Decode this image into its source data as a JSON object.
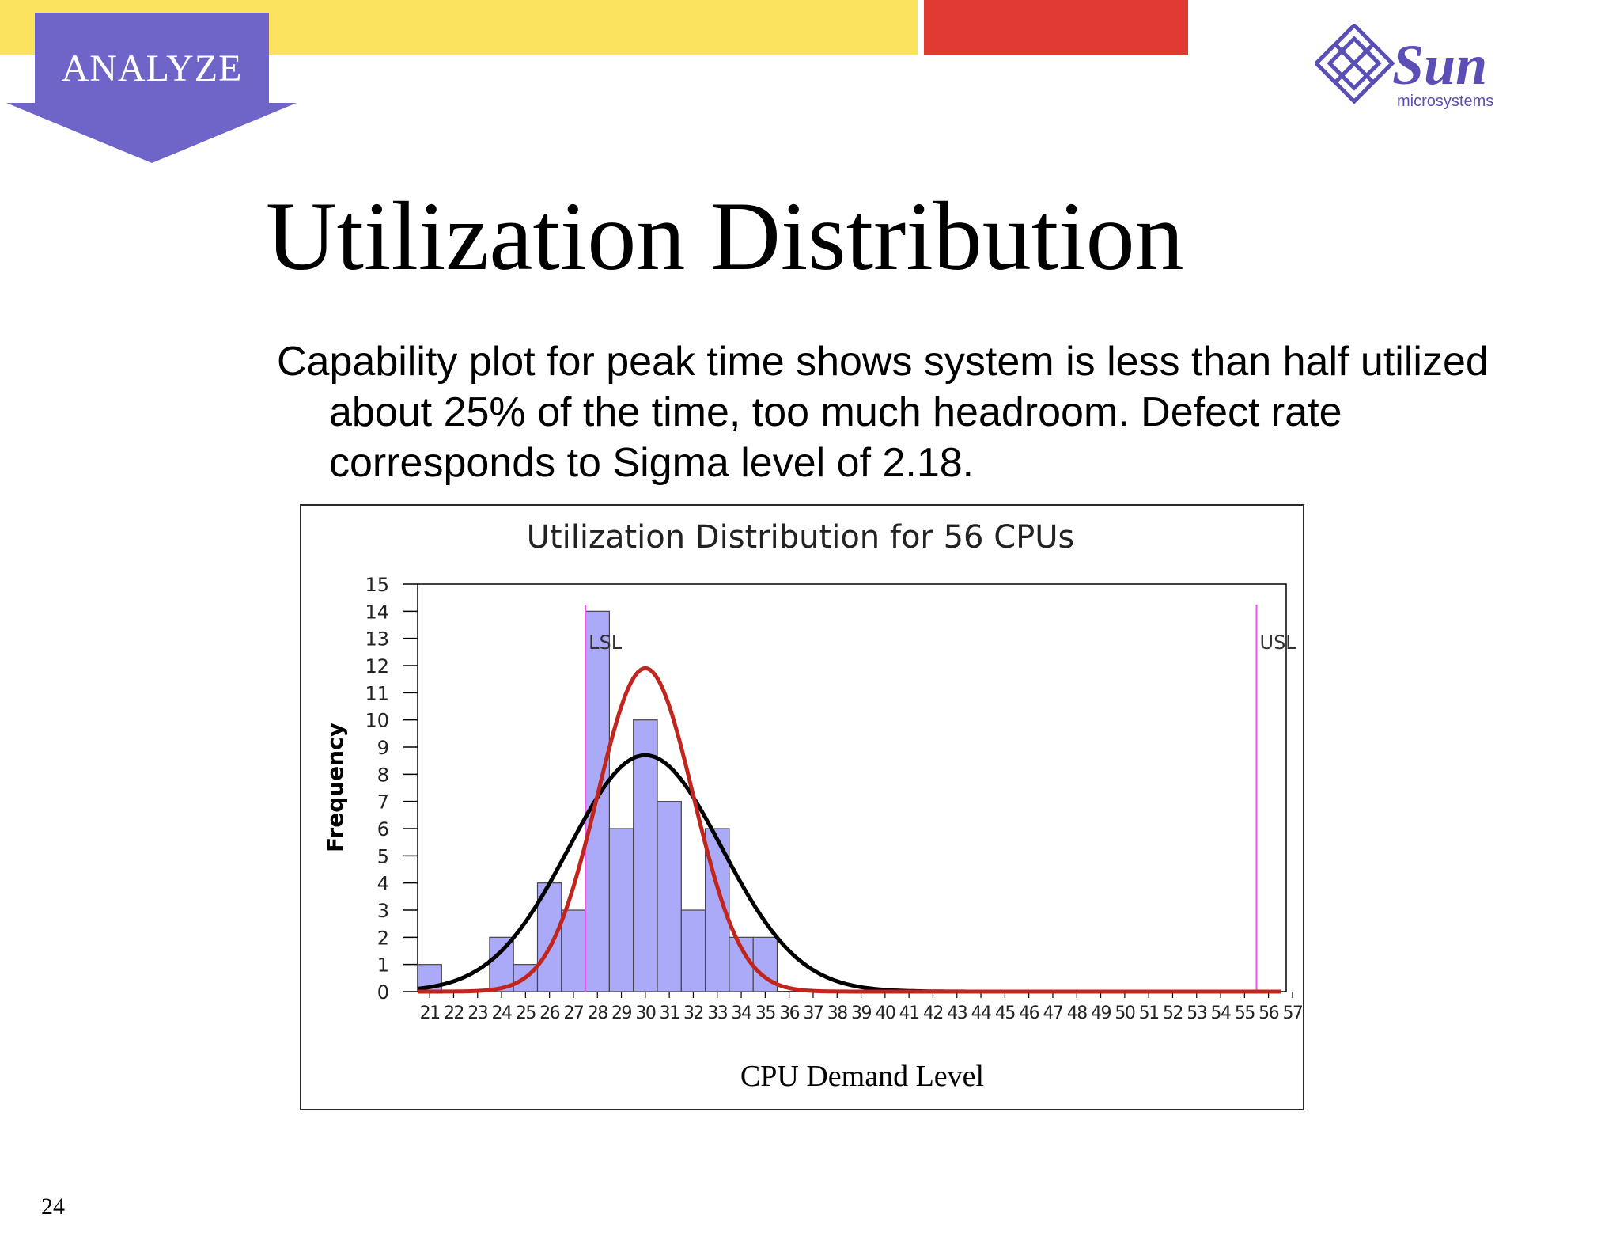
{
  "header": {
    "section_label": "ANALYZE",
    "logo_text": "Sun",
    "logo_subtext": "microsystems",
    "colors": {
      "yellow": "#fbe25f",
      "red": "#e03a33",
      "badge": "#6f64c8",
      "logo": "#5b4fb5"
    }
  },
  "slide": {
    "title": "Utilization Distribution",
    "body": "Capability plot for peak time shows system is less than half utilized about 25% of the time, too much headroom. Defect rate corresponds to Sigma level of 2.18.",
    "page_number": "24"
  },
  "chart_data": {
    "type": "bar",
    "title": "Utilization Distribution for 56 CPUs",
    "xlabel": "CPU Demand Level",
    "ylabel": "Frequency",
    "ylim": [
      0,
      15
    ],
    "yticks": [
      0,
      1,
      2,
      3,
      4,
      5,
      6,
      7,
      8,
      9,
      10,
      11,
      12,
      13,
      14,
      15
    ],
    "categories": [
      "21",
      "22",
      "23",
      "24",
      "25",
      "26",
      "27",
      "28",
      "29",
      "30",
      "31",
      "32",
      "33",
      "34",
      "35",
      "36",
      "37",
      "38",
      "39",
      "40",
      "41",
      "42",
      "43",
      "44",
      "45",
      "46",
      "47",
      "48",
      "49",
      "50",
      "51",
      "52",
      "53",
      "54",
      "55",
      "56",
      "57"
    ],
    "values": [
      1,
      0,
      0,
      2,
      1,
      4,
      3,
      14,
      6,
      10,
      7,
      3,
      6,
      2,
      2,
      0,
      0,
      0,
      0,
      0,
      0,
      0,
      0,
      0,
      0,
      0,
      0,
      0,
      0,
      0,
      0,
      0,
      0,
      0,
      0,
      0,
      0
    ],
    "spec_limits": [
      {
        "name": "LSL",
        "x": 28
      },
      {
        "name": "USL",
        "x": 56
      }
    ],
    "curves": [
      {
        "mean": 30,
        "peak": 8.7,
        "sd": 3.2,
        "color": "#000000"
      },
      {
        "mean": 30,
        "peak": 11.9,
        "sd": 2.0,
        "color": "#c0261e"
      }
    ],
    "colors": {
      "bar_fill": "#aaaaf8",
      "bar_stroke": "#444444",
      "limit_line": "#ee55ee"
    }
  }
}
